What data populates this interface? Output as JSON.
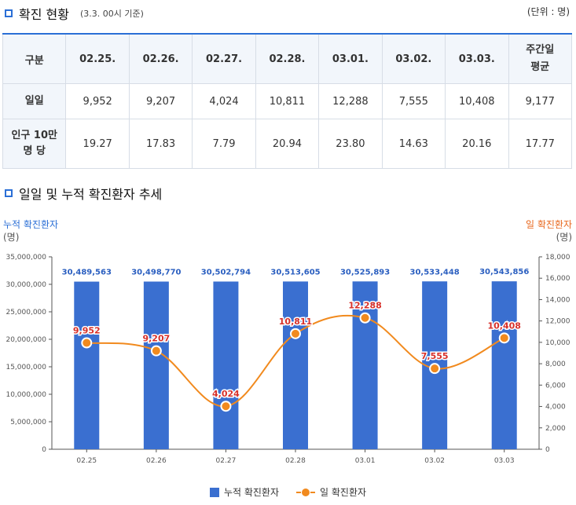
{
  "section1": {
    "title": "확진 현황",
    "subtitle": "(3.3. 00시 기준)",
    "unit": "(단위 : 명)"
  },
  "table": {
    "header": [
      "구분",
      "02.25.",
      "02.26.",
      "02.27.",
      "02.28.",
      "03.01.",
      "03.02.",
      "03.03.",
      "주간일\n평균"
    ],
    "rows": [
      {
        "label": "일일",
        "values": [
          "9,952",
          "9,207",
          "4,024",
          "10,811",
          "12,288",
          "7,555",
          "10,408",
          "9,177"
        ]
      },
      {
        "label": "인구 10만\n명 당",
        "values": [
          "19.27",
          "17.83",
          "7.79",
          "20.94",
          "23.80",
          "14.63",
          "20.16",
          "17.77"
        ]
      }
    ]
  },
  "section2": {
    "title": "일일 및 누적 확진환자 추세"
  },
  "chart_data": {
    "type": "bar+line",
    "categories": [
      "02.25",
      "02.26",
      "02.27",
      "02.28",
      "03.01",
      "03.02",
      "03.03"
    ],
    "series": [
      {
        "name": "누적 확진환자",
        "type": "bar",
        "axis": "left",
        "values": [
          30489563,
          30498770,
          30502794,
          30513605,
          30525893,
          30533448,
          30543856
        ],
        "labels": [
          "30,489,563",
          "30,498,770",
          "30,502,794",
          "30,513,605",
          "30,525,893",
          "30,533,448",
          "30,543,856"
        ],
        "color": "#3a6fd0"
      },
      {
        "name": "일 확진환자",
        "type": "line",
        "axis": "right",
        "values": [
          9952,
          9207,
          4024,
          10811,
          12288,
          7555,
          10408
        ],
        "labels": [
          "9,952",
          "9,207",
          "4,024",
          "10,811",
          "12,288",
          "7,555",
          "10,408"
        ],
        "color": "#f18a1e",
        "label_color": "#d7302a"
      }
    ],
    "y_left": {
      "title": "누적 확진환자",
      "unit": "(명)",
      "min": 0,
      "max": 35000000,
      "step": 5000000,
      "ticks": [
        "0",
        "5,000,000",
        "10,000,000",
        "15,000,000",
        "20,000,000",
        "25,000,000",
        "30,000,000",
        "35,000,000"
      ]
    },
    "y_right": {
      "title": "일 확진환자",
      "unit": "(명)",
      "min": 0,
      "max": 18000,
      "step": 2000,
      "ticks": [
        "0",
        "2,000",
        "4,000",
        "6,000",
        "8,000",
        "10,000",
        "12,000",
        "14,000",
        "16,000",
        "18,000"
      ]
    },
    "legend": {
      "bar": "누적 확진환자",
      "line": "일 확진환자",
      "position": "bottom"
    },
    "grid": false
  }
}
